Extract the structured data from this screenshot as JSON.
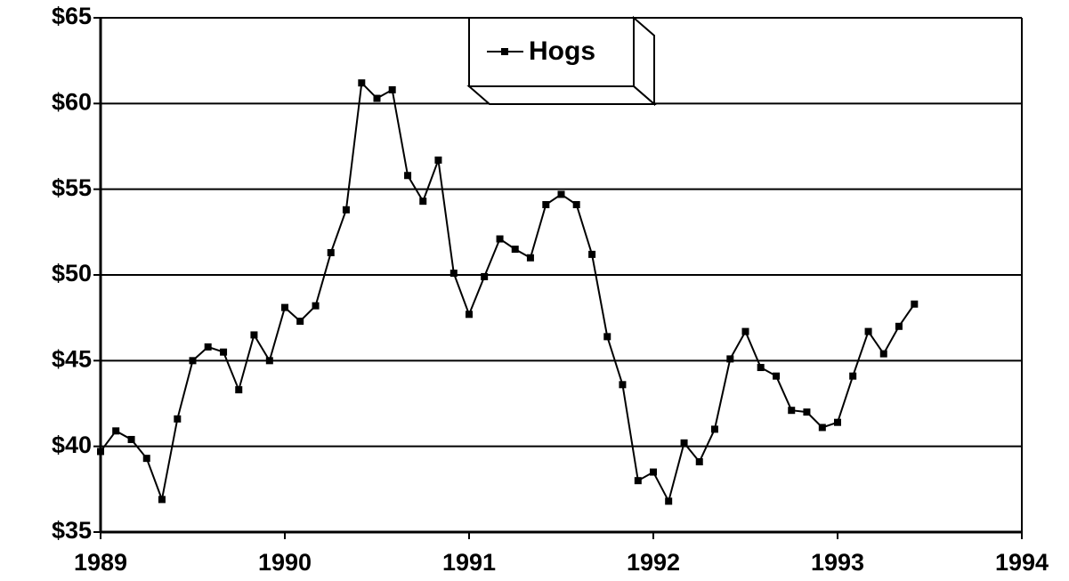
{
  "chart_data": {
    "type": "line",
    "x": [
      1989,
      1989.083,
      1989.167,
      1989.25,
      1989.333,
      1989.417,
      1989.5,
      1989.583,
      1989.667,
      1989.75,
      1989.833,
      1989.917,
      1990,
      1990.083,
      1990.167,
      1990.25,
      1990.333,
      1990.417,
      1990.5,
      1990.583,
      1990.667,
      1990.75,
      1990.833,
      1990.917,
      1991,
      1991.083,
      1991.167,
      1991.25,
      1991.333,
      1991.417,
      1991.5,
      1991.583,
      1991.667,
      1991.75,
      1991.833,
      1991.917,
      1992,
      1992.083,
      1992.167,
      1992.25,
      1992.333,
      1992.417,
      1992.5,
      1992.583,
      1992.667,
      1992.75,
      1992.833,
      1992.917,
      1993,
      1993.083,
      1993.167,
      1993.25,
      1993.333,
      1993.417
    ],
    "series": [
      {
        "name": "Hogs",
        "color": "#000000",
        "values": [
          39.7,
          40.9,
          40.4,
          39.3,
          36.9,
          41.6,
          45.0,
          45.8,
          45.5,
          43.3,
          46.5,
          45.0,
          48.1,
          47.3,
          48.2,
          51.3,
          53.8,
          61.2,
          60.3,
          60.8,
          55.8,
          54.3,
          56.7,
          50.1,
          47.7,
          49.9,
          52.1,
          51.5,
          51.0,
          54.1,
          54.7,
          54.1,
          51.2,
          46.4,
          43.6,
          38.0,
          38.5,
          36.8,
          40.2,
          39.1,
          41.0,
          45.1,
          46.7,
          44.6,
          44.1,
          42.1,
          42.0,
          41.1,
          41.4,
          44.1,
          46.7,
          45.4,
          47.0,
          48.3
        ]
      }
    ],
    "xlim": [
      1989,
      1994
    ],
    "xticks": [
      1989,
      1990,
      1991,
      1992,
      1993,
      1994
    ],
    "ylim": [
      35,
      65
    ],
    "yticks": [
      {
        "value": 35,
        "label": "$35"
      },
      {
        "value": 40,
        "label": "$40"
      },
      {
        "value": 45,
        "label": "$45"
      },
      {
        "value": 50,
        "label": "$50"
      },
      {
        "value": 55,
        "label": "$55"
      },
      {
        "value": 60,
        "label": "$60"
      },
      {
        "value": 65,
        "label": "$65"
      }
    ],
    "grid": true,
    "legend": "top"
  }
}
